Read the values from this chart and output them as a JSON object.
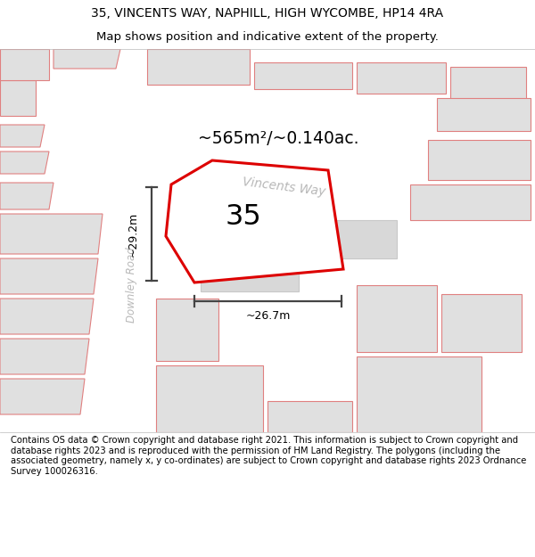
{
  "title_line1": "35, VINCENTS WAY, NAPHILL, HIGH WYCOMBE, HP14 4RA",
  "title_line2": "Map shows position and indicative extent of the property.",
  "footer_text": "Contains OS data © Crown copyright and database right 2021. This information is subject to Crown copyright and database rights 2023 and is reproduced with the permission of HM Land Registry. The polygons (including the associated geometry, namely x, y co-ordinates) are subject to Crown copyright and database rights 2023 Ordnance Survey 100026316.",
  "bg_color": "#ebebeb",
  "plot_edge_color": "#dd0000",
  "plot_fill": "#ffffff",
  "dim_color": "#444444",
  "label_road_color": "#b8b8b8",
  "building_fill": "#e0e0e0",
  "building_edge_pink": "#e08080",
  "plot_label": "35",
  "area_label": "~565m²/~0.140ac.",
  "width_label": "~26.7m",
  "height_label": "~29.2m",
  "road_name1": "Downley Road",
  "road_name2": "Vincents Way",
  "title_fontsize": 10,
  "footer_fontsize": 7.2
}
